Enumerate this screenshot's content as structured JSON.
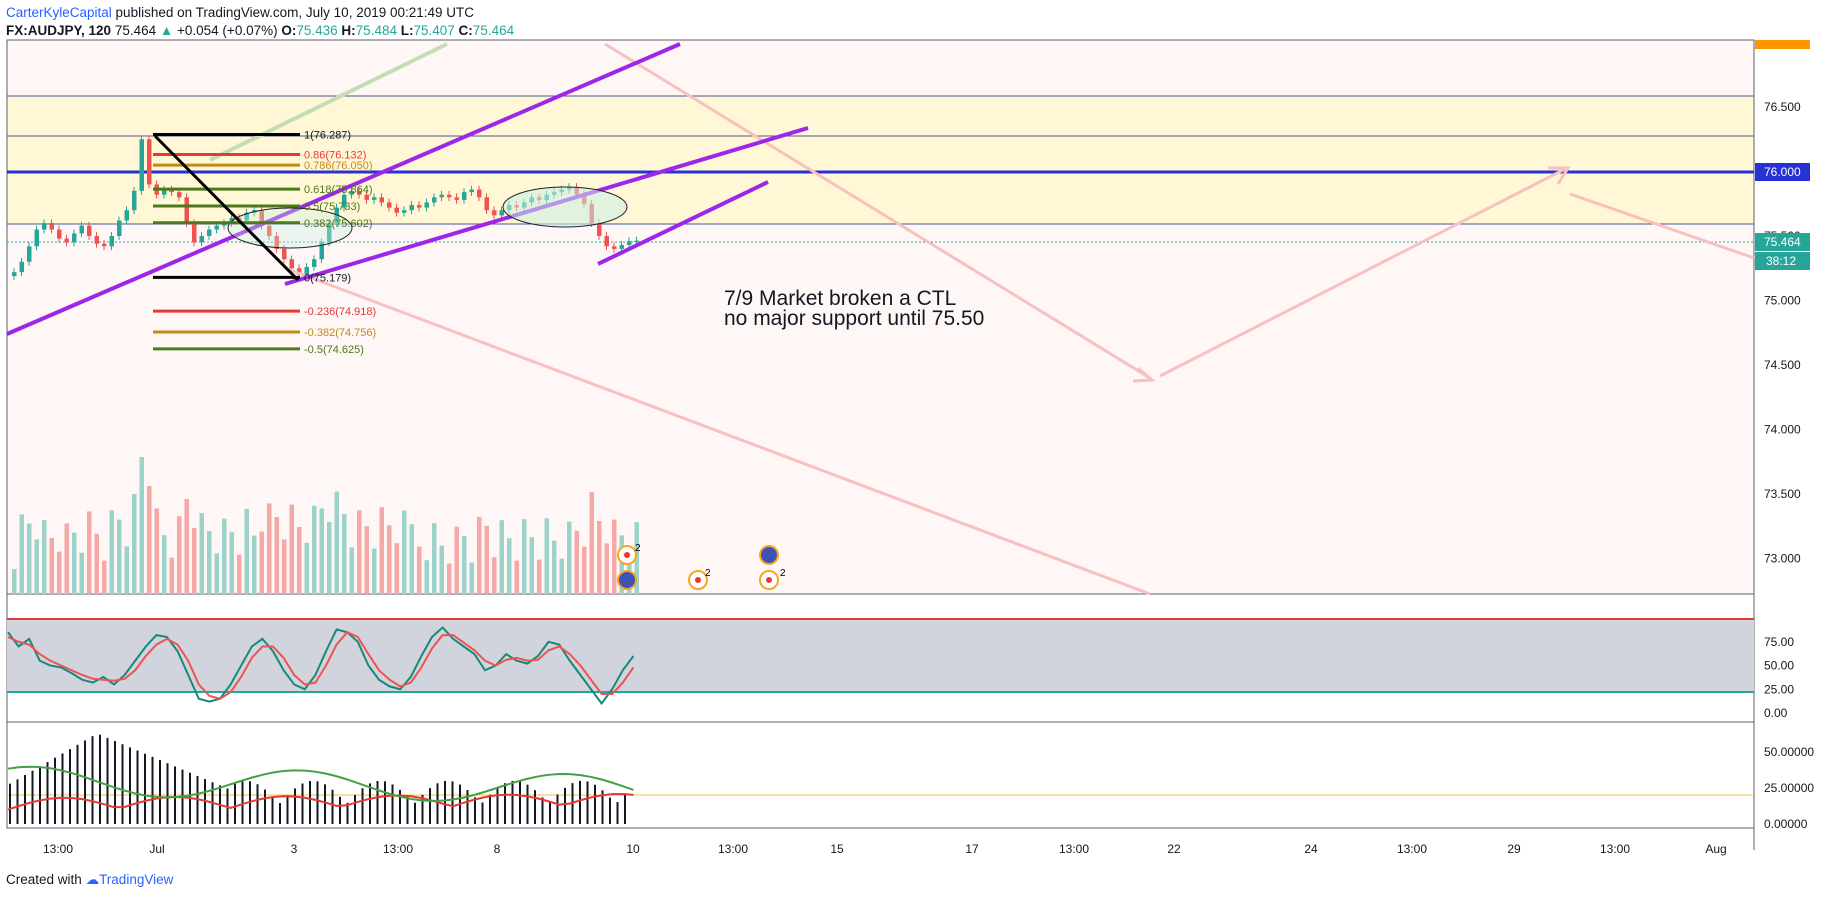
{
  "header": {
    "author": "CarterKyleCapital",
    "published": " published on TradingView.com, July 10, 2019 00:21:49 UTC",
    "symbol": "FX:AUDJPY, 120",
    "last": "75.464",
    "change": "+0.054 (+0.07%)",
    "o_label": "O:",
    "o": "75.436",
    "h_label": "H:",
    "h": "75.484",
    "l_label": "L:",
    "l": "75.407",
    "c_label": "C:",
    "c": "75.464"
  },
  "footer": {
    "created": "Created with",
    "brand": "TradingView"
  },
  "colors": {
    "up": "#26a69a",
    "down": "#ef5350",
    "channel": "#9c27e8",
    "level": "#2632d6",
    "zone": "#fff7d6",
    "arrow": "#f7b7b5"
  },
  "annotation": {
    "line1": "7/9 Market broken a CTL",
    "line2": "no major support until 75.50"
  },
  "price_axis": {
    "labels": [
      "76.500",
      "76.000",
      "75.500",
      "75.000",
      "74.500",
      "74.000",
      "73.500",
      "73.000"
    ],
    "level_tag": "76.000",
    "last_tag": "75.464",
    "countdown": "38:12"
  },
  "fib_labels": [
    {
      "text": "1(76.287)",
      "color": "#131722"
    },
    {
      "text": "0.86(76.132)",
      "color": "#e53935"
    },
    {
      "text": "0.786(76.050)",
      "color": "#c18b19"
    },
    {
      "text": "0.618(75.864)",
      "color": "#4a7a1c"
    },
    {
      "text": "0.5(75.733)",
      "color": "#4a7a1c"
    },
    {
      "text": "0.382(75.602)",
      "color": "#4a7a1c"
    },
    {
      "text": "0(75.179)",
      "color": "#131722"
    },
    {
      "text": "-0.236(74.918)",
      "color": "#e53935"
    },
    {
      "text": "-0.382(74.756)",
      "color": "#c18b19"
    },
    {
      "text": "-0.5(74.625)",
      "color": "#4a7a1c"
    }
  ],
  "stoch_axis": [
    "75.00",
    "50.00",
    "25.00",
    "0.00"
  ],
  "dmi_axis": [
    "50.00000",
    "25.00000",
    "0.00000"
  ],
  "time_axis": [
    "13:00",
    "Jul",
    "3",
    "13:00",
    "8",
    "10",
    "13:00",
    "15",
    "17",
    "13:00",
    "22",
    "24",
    "13:00",
    "29",
    "13:00",
    "Aug"
  ],
  "event_badges": [
    "2",
    "2",
    "2"
  ],
  "chart_data": {
    "type": "candlestick",
    "symbol": "FX:AUDJPY",
    "interval": "120",
    "ylim": [
      72.8,
      76.85
    ],
    "fib_retracement": {
      "high": 76.287,
      "low": 75.179,
      "levels": [
        1,
        0.86,
        0.786,
        0.618,
        0.5,
        0.382,
        0,
        -0.236,
        -0.382,
        -0.5
      ]
    },
    "horizontal_levels": [
      76.0,
      76.57,
      76.287,
      75.6
    ],
    "candles_close": [
      75.22,
      75.3,
      75.42,
      75.55,
      75.6,
      75.55,
      75.48,
      75.45,
      75.52,
      75.58,
      75.5,
      75.44,
      75.42,
      75.5,
      75.62,
      75.7,
      75.85,
      76.25,
      75.9,
      75.82,
      75.86,
      75.84,
      75.8,
      75.6,
      75.45,
      75.5,
      75.55,
      75.58,
      75.6,
      75.64,
      75.62,
      75.68,
      75.7,
      75.58,
      75.5,
      75.4,
      75.32,
      75.25,
      75.2,
      75.26,
      75.32,
      75.45,
      75.6,
      75.72,
      75.82,
      75.85,
      75.82,
      75.78,
      75.8,
      75.76,
      75.72,
      75.68,
      75.7,
      75.74,
      75.72,
      75.76,
      75.8,
      75.82,
      75.8,
      75.78,
      75.84,
      75.86,
      75.8,
      75.7,
      75.66,
      75.7,
      75.74,
      75.72,
      75.76,
      75.8,
      75.78,
      75.82,
      75.84,
      75.86,
      75.88,
      75.82,
      75.75,
      75.6,
      75.5,
      75.42,
      75.4,
      75.43,
      75.46,
      75.464
    ],
    "stochastic_k": [
      85,
      70,
      78,
      55,
      50,
      48,
      42,
      35,
      32,
      38,
      30,
      40,
      55,
      70,
      82,
      80,
      65,
      40,
      15,
      12,
      15,
      30,
      50,
      70,
      78,
      65,
      45,
      30,
      25,
      40,
      65,
      88,
      85,
      75,
      50,
      35,
      28,
      25,
      38,
      60,
      80,
      90,
      78,
      70,
      62,
      45,
      50,
      62,
      55,
      52,
      60,
      75,
      72,
      55,
      40,
      25,
      10,
      25,
      45,
      60
    ],
    "stochastic_d": [
      80,
      75,
      72,
      62,
      55,
      50,
      45,
      40,
      36,
      35,
      34,
      36,
      45,
      60,
      72,
      78,
      72,
      55,
      30,
      18,
      15,
      22,
      38,
      58,
      70,
      70,
      58,
      40,
      30,
      32,
      50,
      72,
      85,
      80,
      62,
      45,
      35,
      28,
      32,
      48,
      68,
      82,
      82,
      74,
      66,
      55,
      50,
      56,
      58,
      55,
      56,
      66,
      70,
      62,
      50,
      35,
      20,
      20,
      32,
      48
    ]
  }
}
